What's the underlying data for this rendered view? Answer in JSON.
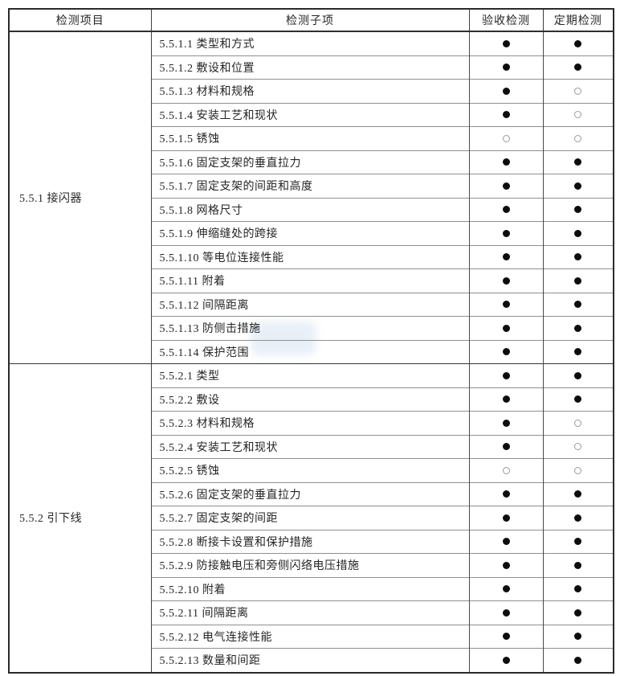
{
  "table": {
    "headers": [
      {
        "label": "检测项目"
      },
      {
        "label": "检测子项"
      },
      {
        "label": "验收检测"
      },
      {
        "label": "定期检测"
      }
    ],
    "marks": {
      "filled": "●",
      "hollow": "○"
    },
    "groups": [
      {
        "item": "5.5.1 接闪器",
        "rows": [
          {
            "sub": "5.5.1.1 类型和方式",
            "acceptance": "filled",
            "periodic": "filled"
          },
          {
            "sub": "5.5.1.2 敷设和位置",
            "acceptance": "filled",
            "periodic": "filled"
          },
          {
            "sub": "5.5.1.3 材料和规格",
            "acceptance": "filled",
            "periodic": "hollow"
          },
          {
            "sub": "5.5.1.4 安装工艺和现状",
            "acceptance": "filled",
            "periodic": "hollow"
          },
          {
            "sub": "5.5.1.5 锈蚀",
            "acceptance": "hollow",
            "periodic": "hollow"
          },
          {
            "sub": "5.5.1.6 固定支架的垂直拉力",
            "acceptance": "filled",
            "periodic": "filled"
          },
          {
            "sub": "5.5.1.7 固定支架的间距和高度",
            "acceptance": "filled",
            "periodic": "filled"
          },
          {
            "sub": "5.5.1.8 网格尺寸",
            "acceptance": "filled",
            "periodic": "filled"
          },
          {
            "sub": "5.5.1.9 伸缩缝处的跨接",
            "acceptance": "filled",
            "periodic": "filled"
          },
          {
            "sub": "5.5.1.10 等电位连接性能",
            "acceptance": "filled",
            "periodic": "filled"
          },
          {
            "sub": "5.5.1.11 附着",
            "acceptance": "filled",
            "periodic": "filled"
          },
          {
            "sub": "5.5.1.12 间隔距离",
            "acceptance": "filled",
            "periodic": "filled"
          },
          {
            "sub": "5.5.1.13 防侧击措施",
            "acceptance": "filled",
            "periodic": "filled"
          },
          {
            "sub": "5.5.1.14 保护范围",
            "acceptance": "filled",
            "periodic": "filled"
          }
        ]
      },
      {
        "item": "5.5.2 引下线",
        "rows": [
          {
            "sub": "5.5.2.1 类型",
            "acceptance": "filled",
            "periodic": "filled"
          },
          {
            "sub": "5.5.2.2 敷设",
            "acceptance": "filled",
            "periodic": "filled"
          },
          {
            "sub": "5.5.2.3 材料和规格",
            "acceptance": "filled",
            "periodic": "hollow"
          },
          {
            "sub": "5.5.2.4 安装工艺和现状",
            "acceptance": "filled",
            "periodic": "hollow"
          },
          {
            "sub": "5.5.2.5 锈蚀",
            "acceptance": "hollow",
            "periodic": "hollow"
          },
          {
            "sub": "5.5.2.6 固定支架的垂直拉力",
            "acceptance": "filled",
            "periodic": "filled"
          },
          {
            "sub": "5.5.2.7 固定支架的间距",
            "acceptance": "filled",
            "periodic": "filled"
          },
          {
            "sub": "5.5.2.8 断接卡设置和保护措施",
            "acceptance": "filled",
            "periodic": "filled"
          },
          {
            "sub": "5.5.2.9 防接触电压和旁侧闪络电压措施",
            "acceptance": "filled",
            "periodic": "filled"
          },
          {
            "sub": "5.5.2.10 附着",
            "acceptance": "filled",
            "periodic": "filled"
          },
          {
            "sub": "5.5.2.11 间隔距离",
            "acceptance": "filled",
            "periodic": "filled"
          },
          {
            "sub": "5.5.2.12 电气连接性能",
            "acceptance": "filled",
            "periodic": "filled"
          },
          {
            "sub": "5.5.2.13 数量和间距",
            "acceptance": "filled",
            "periodic": "filled"
          }
        ]
      }
    ]
  },
  "colors": {
    "border_outer": "#2b2b2b",
    "border_column": "#4a4a4a",
    "row_line": "#8f8f8f",
    "text": "#262626",
    "dot_filled": "#0d0d0d",
    "dot_hollow_ring": "#9b9b9b",
    "watermark": "#bcd0e8"
  }
}
